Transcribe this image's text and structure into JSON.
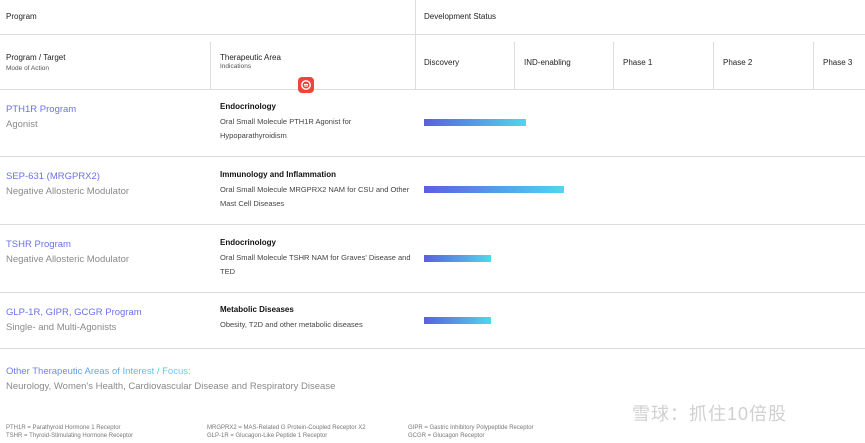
{
  "headers": {
    "program": "Program",
    "development_status": "Development Status",
    "program_target": "Program / Target",
    "mode_of_action": "Mode of Action",
    "therapeutic_area": "Therapeutic Area",
    "indications": "Indications",
    "stages": [
      "Discovery",
      "IND-enabling",
      "Phase 1",
      "Phase 2",
      "Phase 3"
    ]
  },
  "badge_icon": "app-badge-icon",
  "programs": [
    {
      "name": "PTH1R Program",
      "mode": "Agonist",
      "area": "Endocrinology",
      "desc": "Oral Small Molecule PTH1R Agonist for Hypoparathyroidism",
      "progress": 0.52
    },
    {
      "name": "SEP-631 (MRGPRX2)",
      "mode": "Negative Allosteric Modulator",
      "area": "Immunology and Inflammation",
      "desc": "Oral Small Molecule MRGPRX2 NAM for CSU and Other Mast Cell Diseases",
      "progress": 0.71
    },
    {
      "name": "TSHR Program",
      "mode": "Negative Allosteric Modulator",
      "area": "Endocrinology",
      "desc": "Oral Small Molecule TSHR NAM for Graves' Disease and TED",
      "progress": 0.34
    },
    {
      "name": "GLP-1R, GIPR, GCGR Program",
      "mode": "Single- and Multi-Agonists",
      "area": "Metabolic Diseases",
      "desc": "Obesity, T2D and other metabolic diseases",
      "progress": 0.34
    }
  ],
  "other": {
    "title": "Other Therapeutic Areas of Interest / Focus:",
    "list": "Neurology, Women's Health, Cardiovascular Disease and Respiratory Disease"
  },
  "footnotes": [
    [
      "PTH1R = Parathyroid Hormone 1 Receptor",
      "TSHR = Thyroid-Stimulating Hormone Receptor"
    ],
    [
      "MRGPRX2 = MAS-Related G Protein-Coupled Receptor X2",
      "GLP-1R = Glucagon-Like Peptide 1 Receptor"
    ],
    [
      "GIPR = Gastric Inhibitory Polypeptide Receptor",
      "GCGR = Glucagon Receptor"
    ]
  ],
  "watermark": "雪球：抓住10倍股",
  "colors": {
    "accent_blue": "#6a72e6",
    "bar_start": "#5b5fe0",
    "bar_end": "#4fd6ee",
    "badge": "#f0443a"
  }
}
